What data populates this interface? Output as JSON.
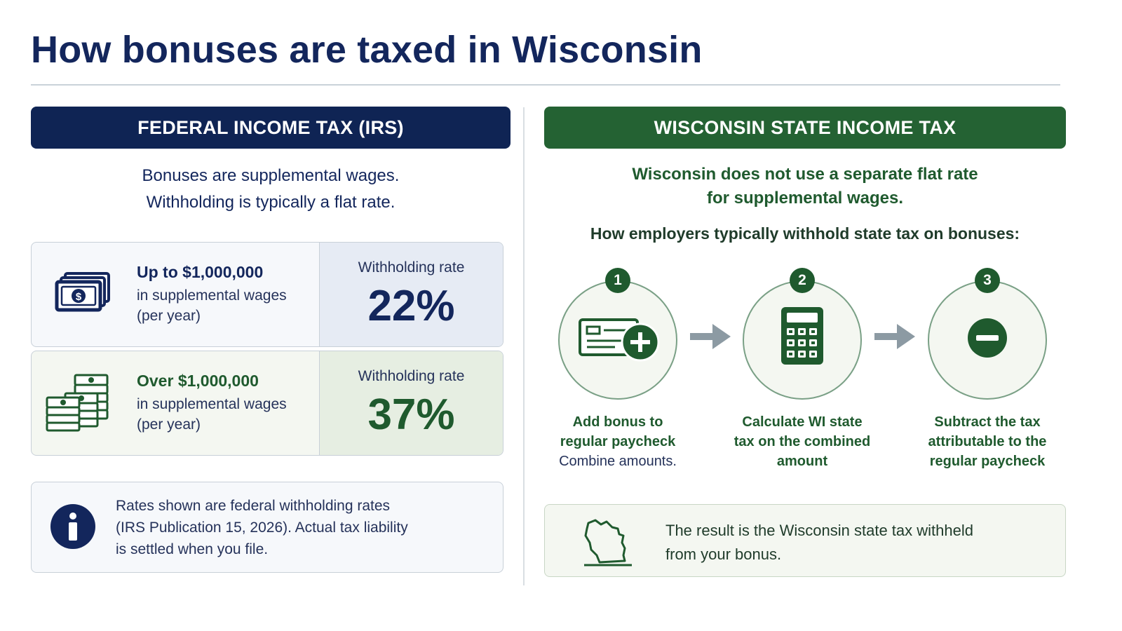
{
  "page": {
    "title": "How bonuses are taxed in Wisconsin"
  },
  "federal": {
    "heading": "FEDERAL INCOME TAX (IRS)",
    "intro_line1": "Bonuses are supplemental wages.",
    "intro_line2": "Withholding is typically a flat rate.",
    "tiers": [
      {
        "threshold": "Up to $1,000,000",
        "line2": "in supplemental wages",
        "line3": "(per year)",
        "rate_label": "Withholding rate",
        "rate": "22%",
        "icon": "money-bill-icon"
      },
      {
        "threshold": "Over $1,000,000",
        "line2": "in supplemental wages",
        "line3": "(per year)",
        "rate_label": "Withholding rate",
        "rate": "37%",
        "icon": "money-stack-icon"
      }
    ],
    "note": {
      "icon": "info-icon",
      "line1": "Rates shown are federal withholding rates",
      "line2": "(IRS Publication 15, 2026). Actual tax liability",
      "line3": "is settled when you file."
    }
  },
  "wisconsin": {
    "heading": "WISCONSIN STATE INCOME TAX",
    "intro_line1": "Wisconsin does not use a separate flat rate",
    "intro_line2": "for supplemental wages.",
    "howto": "How employers typically withhold state tax on bonuses:",
    "steps": [
      {
        "number": "1",
        "icon": "paycheck-plus-icon",
        "line1": "Add bonus to",
        "line2": "regular paycheck",
        "sub": "Combine amounts."
      },
      {
        "number": "2",
        "icon": "calculator-icon",
        "line1": "Calculate WI state",
        "line2": "tax on the combined",
        "line3": "amount"
      },
      {
        "number": "3",
        "icon": "minus-icon",
        "line1": "Subtract the tax",
        "line2": "attributable to the",
        "line3": "regular paycheck"
      }
    ],
    "result": {
      "icon": "wisconsin-map-icon",
      "line1": "The result is the Wisconsin state tax withheld",
      "line2": "from your bonus."
    }
  },
  "colors": {
    "federal_navy": "#0f2454",
    "wisconsin_green": "#246233"
  }
}
